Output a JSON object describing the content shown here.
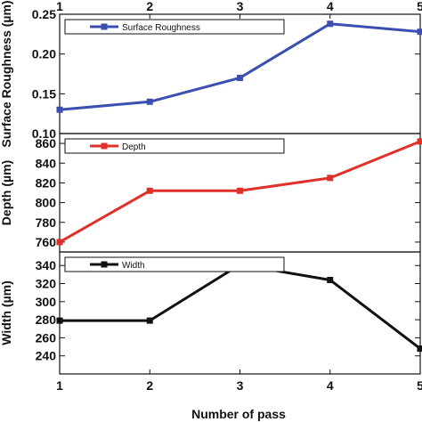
{
  "chart_data": {
    "type": "line",
    "x": [
      1,
      2,
      3,
      4,
      5
    ],
    "xlabel": "Number of pass",
    "xlim": [
      1,
      5
    ],
    "x_ticks": [
      "1",
      "2",
      "3",
      "4",
      "5"
    ],
    "grid": false,
    "panels": [
      {
        "name": "Surface Roughness",
        "ylabel": "Surface Roughness (µm)",
        "ylim": [
          0.1,
          0.25
        ],
        "y_ticks": [
          "0.10",
          "0.15",
          "0.20",
          "0.25"
        ],
        "y_tick_values": [
          0.1,
          0.15,
          0.2,
          0.25
        ],
        "color": "#3a4fb0",
        "values": [
          0.13,
          0.14,
          0.17,
          0.238,
          0.228
        ],
        "legend_position": "top-left"
      },
      {
        "name": "Depth",
        "ylabel": "Depth (µm)",
        "ylim": [
          750,
          870
        ],
        "y_ticks": [
          "760",
          "780",
          "800",
          "820",
          "840",
          "860"
        ],
        "y_tick_values": [
          760,
          780,
          800,
          820,
          840,
          860
        ],
        "color": "#e0302a",
        "values": [
          760,
          812,
          812,
          825,
          862
        ],
        "legend_position": "top-left"
      },
      {
        "name": "Width",
        "ylabel": "Width (µm)",
        "ylim": [
          220,
          355
        ],
        "y_ticks": [
          "240",
          "260",
          "280",
          "300",
          "320",
          "340"
        ],
        "y_tick_values": [
          240,
          260,
          280,
          300,
          320,
          340
        ],
        "color": "#111111",
        "values": [
          279,
          279,
          341,
          324,
          248
        ],
        "legend_position": "top-left"
      }
    ]
  }
}
